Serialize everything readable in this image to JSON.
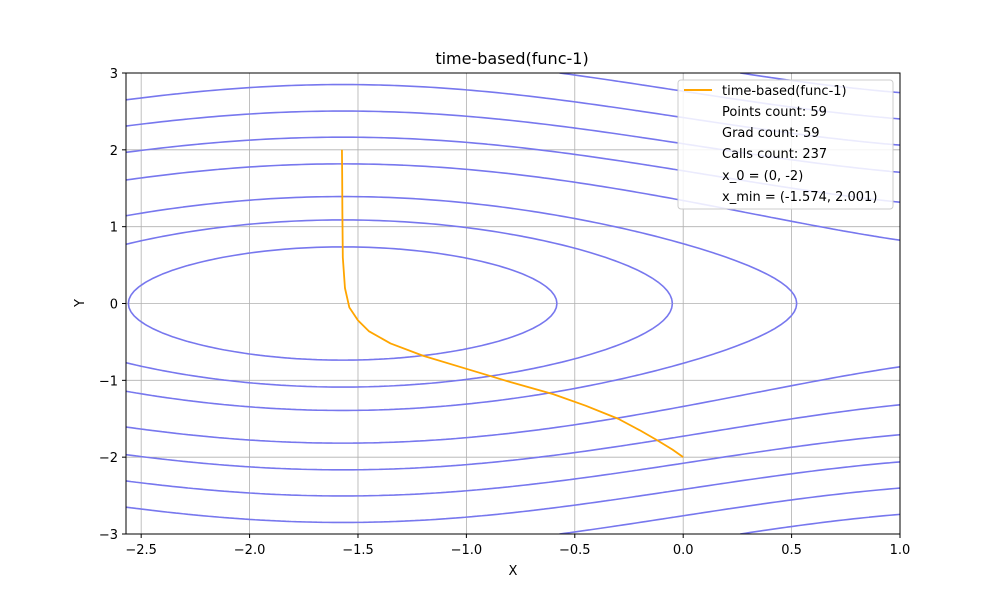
{
  "chart_data": {
    "type": "line",
    "title": "time-based(func-1)",
    "xlabel": "X",
    "ylabel": "Y",
    "xlim": [
      -2.57,
      1.0
    ],
    "ylim": [
      -3,
      3
    ],
    "xticks": [
      -2.5,
      -2.0,
      -1.5,
      -1.0,
      -0.5,
      0.0,
      0.5,
      1.0
    ],
    "xtick_labels": [
      "−2.5",
      "−2.0",
      "−1.5",
      "−1.0",
      "−0.5",
      "0.0",
      "0.5",
      "1.0"
    ],
    "yticks": [
      -3,
      -2,
      -1,
      0,
      1,
      2,
      3
    ],
    "ytick_labels": [
      "−3",
      "−2",
      "−1",
      "0",
      "1",
      "2",
      "3"
    ],
    "grid": true,
    "legend_position": "top-right",
    "colors": {
      "contour": "#7777ee",
      "trajectory": "#ffa500",
      "grid": "#b0b0b0"
    },
    "contour": {
      "function": "sin(x) - cos(y) + 0.35*y^2 (approximate)",
      "levels": [
        -1.55,
        -1.05,
        -0.5,
        0.4,
        1.2,
        2.0,
        2.8,
        3.6,
        4.4,
        5.2
      ],
      "negative_levels_dashed": true
    },
    "series": [
      {
        "name": "time-based(func-1)",
        "x": [
          0.0,
          -0.05,
          -0.12,
          -0.2,
          -0.3,
          -0.45,
          -0.6,
          -0.8,
          -1.0,
          -1.2,
          -1.35,
          -1.45,
          -1.5,
          -1.54,
          -1.56,
          -1.57,
          -1.572,
          -1.573,
          -1.574
        ],
        "y": [
          -2.0,
          -1.9,
          -1.78,
          -1.65,
          -1.5,
          -1.33,
          -1.18,
          -1.02,
          -0.85,
          -0.68,
          -0.52,
          -0.36,
          -0.22,
          -0.05,
          0.2,
          0.6,
          1.2,
          1.7,
          2.001
        ]
      }
    ],
    "legend": {
      "entries": [
        "time-based(func-1)",
        "Points count: 59",
        "Grad count: 59",
        "Calls count: 237",
        "x_0 = (0, -2)",
        "x_min = (-1.574, 2.001)"
      ]
    }
  }
}
